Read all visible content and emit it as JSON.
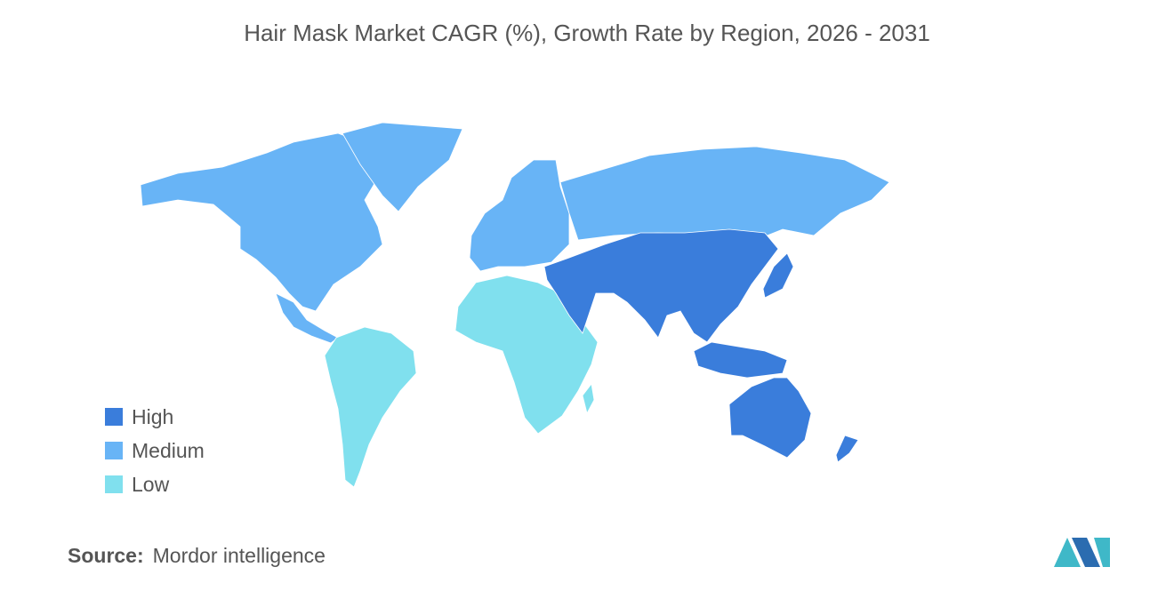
{
  "title": "Hair Mask Market CAGR (%), Growth Rate by Region, 2026 - 2031",
  "legend": [
    {
      "label": "High",
      "color": "#3a7ddb"
    },
    {
      "label": "Medium",
      "color": "#68b4f6"
    },
    {
      "label": "Low",
      "color": "#80e0ee"
    }
  ],
  "source": {
    "label": "Source:",
    "text": "Mordor intelligence"
  }
}
